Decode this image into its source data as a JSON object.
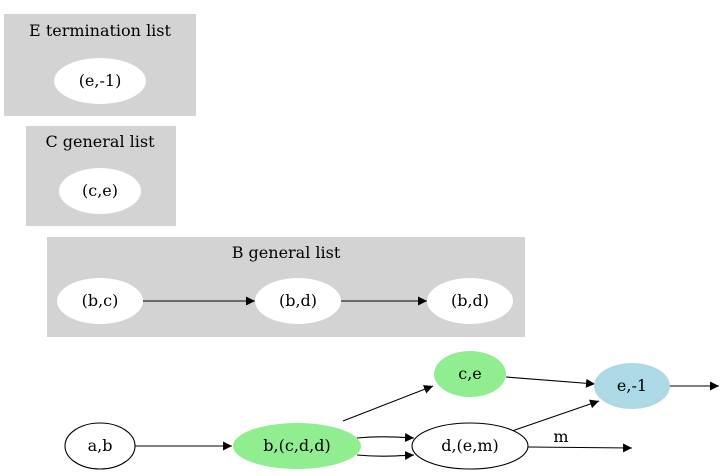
{
  "clusters": {
    "e_termination": {
      "title": "E termination list",
      "nodes": [
        "(e,-1)"
      ]
    },
    "c_general": {
      "title": "C general list",
      "nodes": [
        "(c,e)"
      ]
    },
    "b_general": {
      "title": "B general list",
      "nodes": [
        "(b,c)",
        "(b,d)",
        "(b,d)"
      ]
    }
  },
  "graph": {
    "nodes": {
      "ab": "a,b",
      "bcdd": "b,(c,d,d)",
      "dem": "d,(e,m)",
      "ce": "c,e",
      "e1": "e,-1"
    },
    "edge_labels": {
      "m": "m"
    }
  },
  "colors": {
    "cluster_fill": "#d3d3d3",
    "node_white": "#ffffff",
    "node_green": "#90ee90",
    "node_blue": "#add8e6",
    "edge": "#000000"
  }
}
